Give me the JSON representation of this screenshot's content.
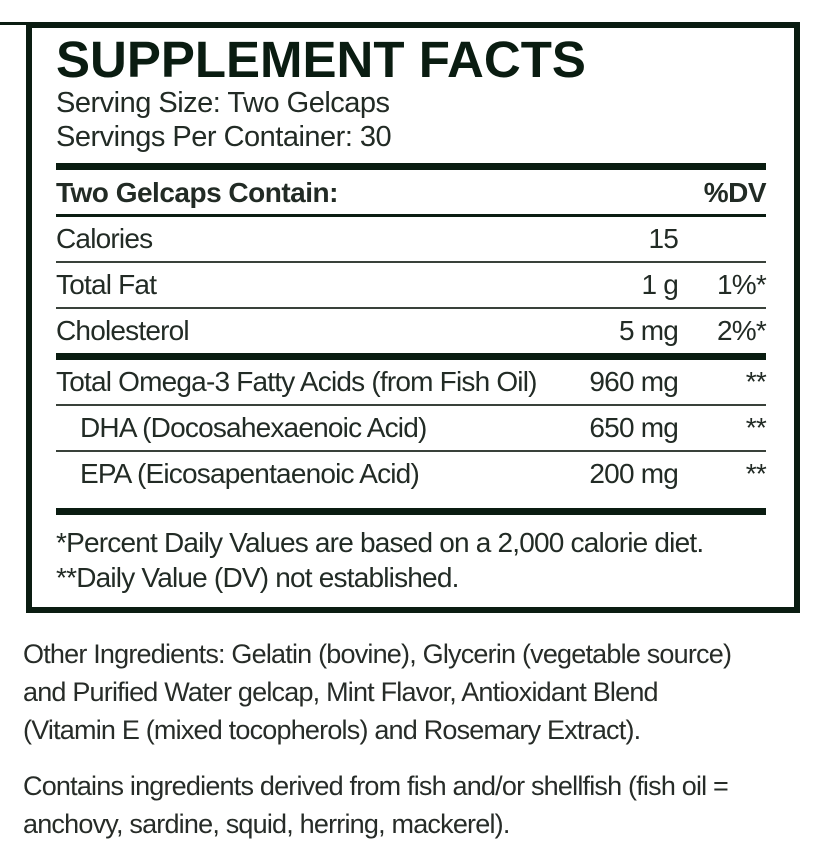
{
  "colors": {
    "ink": "#0a1c11",
    "text": "#222b25"
  },
  "panel": {
    "title": "SUPPLEMENT FACTS",
    "serving_size": "Serving Size: Two Gelcaps",
    "servings_per_container": "Servings Per Container: 30",
    "table": {
      "header": {
        "label": "Two Gelcaps Contain:",
        "dv": "%DV"
      },
      "rows": [
        {
          "name": "Calories",
          "amount": "15",
          "dv": ""
        },
        {
          "name": "Total Fat",
          "amount": "1 g",
          "dv": "1%*"
        },
        {
          "name": "Cholesterol",
          "amount": "5 mg",
          "dv": "2%*"
        },
        {
          "name": "Total Omega-3 Fatty Acids (from Fish Oil)",
          "amount": "960 mg",
          "dv": "**"
        },
        {
          "name": "DHA (Docosahexaenoic Acid)",
          "amount": "650 mg",
          "dv": "**"
        },
        {
          "name": "EPA (Eicosapentaenoic Acid)",
          "amount": "200 mg",
          "dv": "**"
        }
      ]
    },
    "footnotes": [
      "*Percent Daily Values are based on a 2,000 calorie diet.",
      "**Daily Value (DV) not established."
    ]
  },
  "other_ingredients": {
    "lines": [
      "Other Ingredients: Gelatin (bovine), Glycerin (vegetable source)",
      "and Purified Water gelcap, Mint Flavor, Antioxidant Blend",
      "(Vitamin E (mixed tocopherols) and Rosemary Extract)."
    ]
  },
  "allergen_statement": {
    "lines": [
      "Contains ingredients derived from fish and/or shellfish (fish oil =",
      "anchovy, sardine, squid, herring, mackerel)."
    ]
  }
}
